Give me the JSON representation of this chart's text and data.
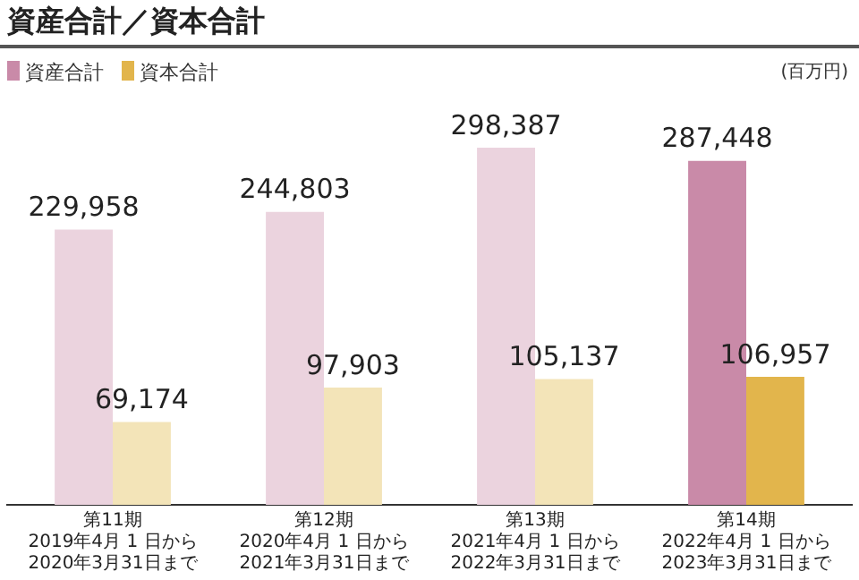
{
  "chart_data": {
    "type": "bar",
    "title": "資産合計／資本合計",
    "annotations": [
      "(百万円)"
    ],
    "categories": [
      "第11期\n2019年4月 1 日から\n2020年3月31日まで",
      "第12期\n2020年4月 1 日から\n2021年3月31日まで",
      "第13期\n2021年4月 1 日から\n2022年3月31日まで",
      "第14期\n2022年4月 1 日から\n2023年3月31日まで"
    ],
    "series": [
      {
        "name": "資産合計",
        "color": "#c98aa8",
        "colors": [
          "#ebd3de",
          "#ebd3de",
          "#ebd3de",
          "#c98aa8"
        ],
        "values": [
          229958,
          244803,
          298387,
          287448
        ],
        "value_labels": [
          "229,958",
          "244,803",
          "298,387",
          "287,448"
        ]
      },
      {
        "name": "資本合計",
        "color": "#e2b54c",
        "colors": [
          "#f3e4b8",
          "#f3e4b8",
          "#f3e4b8",
          "#e2b54c"
        ],
        "values": [
          69174,
          97903,
          105137,
          106957
        ],
        "value_labels": [
          "69,174",
          "97,903",
          "105,137",
          "106,957"
        ]
      }
    ],
    "legend": "top left",
    "grid": false
  }
}
